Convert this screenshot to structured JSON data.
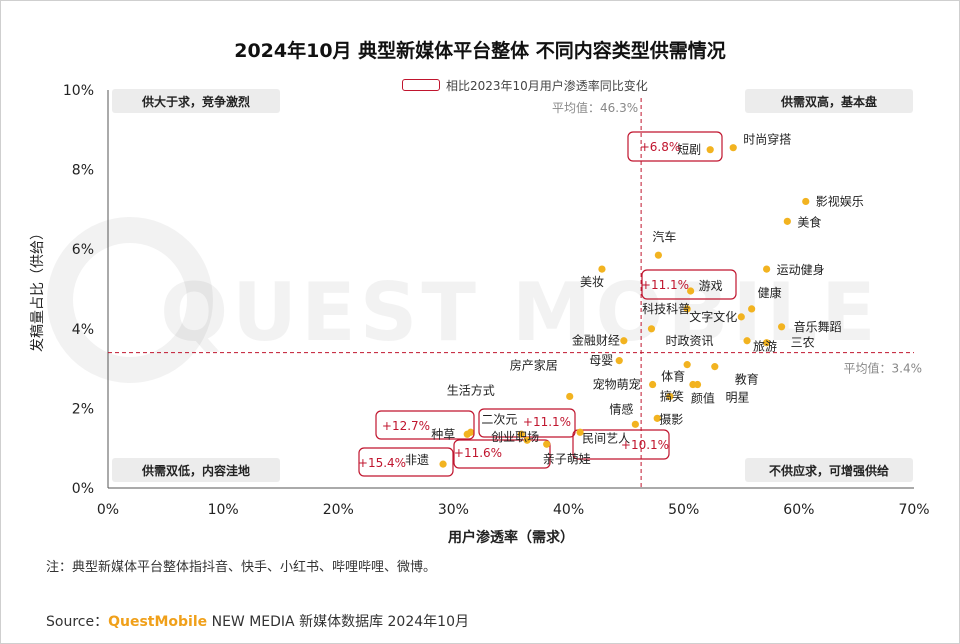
{
  "title": "2024年10月 典型新媒体平台整体 不同内容类型供需情况",
  "legend_label": "相比2023年10月用户渗透率同比变化",
  "note": "注：典型新媒体平台整体指抖音、快手、小红书、哔哩哔哩、微博。",
  "source": {
    "prefix": "Source：",
    "brand": "QuestMobile",
    "rest": " NEW MEDIA 新媒体数据库 2024年10月"
  },
  "colors": {
    "point": "#f2b320",
    "highlight": "#c0152e",
    "quadrant_bg": "#ececec",
    "axis": "#555555"
  },
  "chart_data": {
    "type": "scatter",
    "xlabel": "用户渗透率（需求）",
    "ylabel": "发稿量占比（供给）",
    "xlim": [
      0,
      70
    ],
    "ylim": [
      0,
      10
    ],
    "x_ticks": [
      "0%",
      "10%",
      "20%",
      "30%",
      "40%",
      "50%",
      "60%",
      "70%"
    ],
    "y_ticks": [
      "0%",
      "2%",
      "4%",
      "6%",
      "8%",
      "10%"
    ],
    "grid": false,
    "reference_lines": {
      "x": {
        "value": 46.3,
        "label": "平均值：46.3%"
      },
      "y": {
        "value": 3.4,
        "label": "平均值：3.4%"
      }
    },
    "quadrants": {
      "top_left": "供大于求，竞争激烈",
      "top_right": "供需双高，基本盘",
      "bottom_left": "供需双低，内容洼地",
      "bottom_right": "不供应求，可增强供给"
    },
    "points": [
      {
        "name": "时尚穿搭",
        "x": 54.3,
        "y": 8.55
      },
      {
        "name": "短剧",
        "x": 52.3,
        "y": 8.5,
        "change": "+6.8%"
      },
      {
        "name": "影视娱乐",
        "x": 60.6,
        "y": 7.2
      },
      {
        "name": "美食",
        "x": 59.0,
        "y": 6.7
      },
      {
        "name": "汽车",
        "x": 47.8,
        "y": 5.85
      },
      {
        "name": "美妆",
        "x": 42.9,
        "y": 5.5
      },
      {
        "name": "运动健身",
        "x": 57.2,
        "y": 5.5
      },
      {
        "name": "游戏",
        "x": 50.6,
        "y": 4.95,
        "change": "+11.1%"
      },
      {
        "name": "健康",
        "x": 55.9,
        "y": 4.5
      },
      {
        "name": "科技科普",
        "x": 50.3,
        "y": 4.5
      },
      {
        "name": "文字文化",
        "x": 55.0,
        "y": 4.3
      },
      {
        "name": "音乐舞蹈",
        "x": 58.5,
        "y": 4.05
      },
      {
        "name": "时政资讯",
        "x": 47.2,
        "y": 4.0
      },
      {
        "name": "金融财经",
        "x": 44.8,
        "y": 3.7
      },
      {
        "name": "三农",
        "x": 57.2,
        "y": 3.65
      },
      {
        "name": "旅游",
        "x": 55.5,
        "y": 3.7
      },
      {
        "name": "母婴",
        "x": 44.4,
        "y": 3.2
      },
      {
        "name": "体育",
        "x": 50.3,
        "y": 3.1
      },
      {
        "name": "教育",
        "x": 52.7,
        "y": 3.05
      },
      {
        "name": "房产家居",
        "x": 40.1,
        "y": 2.3
      },
      {
        "name": "宠物萌宠",
        "x": 47.3,
        "y": 2.6
      },
      {
        "name": "明星",
        "x": 51.2,
        "y": 2.6
      },
      {
        "name": "颜值",
        "x": 50.8,
        "y": 2.6
      },
      {
        "name": "搞笑",
        "x": 48.8,
        "y": 2.3
      },
      {
        "name": "摄影",
        "x": 47.7,
        "y": 1.75
      },
      {
        "name": "情感",
        "x": 45.8,
        "y": 1.6
      },
      {
        "name": "生活方式",
        "x": 31.5,
        "y": 1.4
      },
      {
        "name": "种草",
        "x": 31.2,
        "y": 1.35,
        "change": "+12.7%"
      },
      {
        "name": "二次元",
        "x": 35.9,
        "y": 1.35,
        "change": "+11.1%"
      },
      {
        "name": "民间艺人",
        "x": 41.0,
        "y": 1.4,
        "change": "+10.1%"
      },
      {
        "name": "创业职场",
        "x": 36.4,
        "y": 1.2,
        "change": "+11.6%"
      },
      {
        "name": "亲子萌娃",
        "x": 38.1,
        "y": 1.1
      },
      {
        "name": "非遗",
        "x": 29.1,
        "y": 0.6,
        "change": "+15.4%"
      }
    ]
  }
}
